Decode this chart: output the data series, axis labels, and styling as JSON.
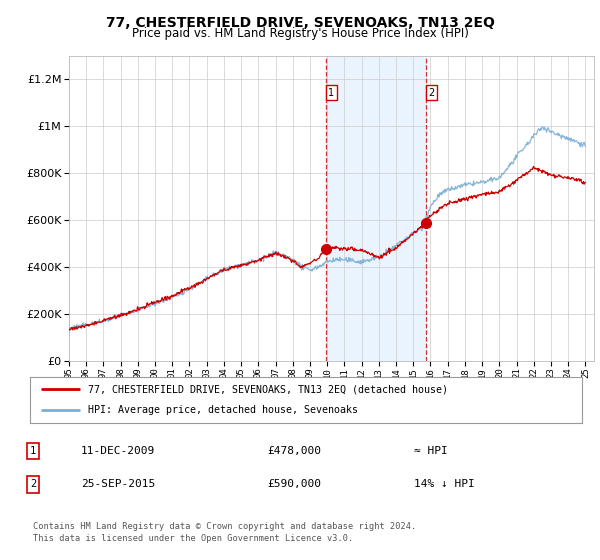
{
  "title": "77, CHESTERFIELD DRIVE, SEVENOAKS, TN13 2EQ",
  "subtitle": "Price paid vs. HM Land Registry's House Price Index (HPI)",
  "legend_line1": "77, CHESTERFIELD DRIVE, SEVENOAKS, TN13 2EQ (detached house)",
  "legend_line2": "HPI: Average price, detached house, Sevenoaks",
  "annotation1_label": "1",
  "annotation1_date": "11-DEC-2009",
  "annotation1_price": "£478,000",
  "annotation1_hpi": "≈ HPI",
  "annotation2_label": "2",
  "annotation2_date": "25-SEP-2015",
  "annotation2_price": "£590,000",
  "annotation2_hpi": "14% ↓ HPI",
  "footer": "Contains HM Land Registry data © Crown copyright and database right 2024.\nThis data is licensed under the Open Government Licence v3.0.",
  "ylim": [
    0,
    1300000
  ],
  "yticks": [
    0,
    200000,
    400000,
    600000,
    800000,
    1000000,
    1200000
  ],
  "background_color": "#ffffff",
  "plot_bg_color": "#ffffff",
  "grid_color": "#cccccc",
  "red_line_color": "#cc0000",
  "blue_line_color": "#7ab0d4",
  "shade_color": "#ddeeff",
  "marker1_x": 2009.92,
  "marker1_y": 478000,
  "marker2_x": 2015.72,
  "marker2_y": 590000,
  "xmin": 1995,
  "xmax": 2025.5
}
